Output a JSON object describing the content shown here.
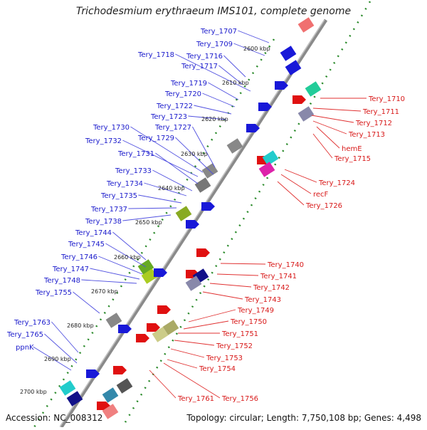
{
  "title": "Trichodesmium erythraeum IMS101, complete genome",
  "footer": {
    "accession": "Accession: NC_008312",
    "topology": "Topology: circular; Length: 7,750,108 bp; Genes: 4,498"
  },
  "kbp_ticks": [
    "2600 kbp",
    "2610 kbp",
    "2620 kbp",
    "2630 kbp",
    "2640 kbp",
    "2650 kbp",
    "2660 kbp",
    "2670 kbp",
    "2680 kbp",
    "2690 kbp",
    "2700 kbp"
  ],
  "left_genes": [
    "Tery_1707",
    "Tery_1709",
    "Tery_1718",
    "Tery_1716",
    "Tery_1717",
    "Tery_1719",
    "Tery_1720",
    "Tery_1722",
    "Tery_1723",
    "Tery_1730",
    "Tery_1727",
    "Tery_1729",
    "Tery_1732",
    "Tery_1731",
    "Tery_1733",
    "Tery_1734",
    "Tery_1735",
    "Tery_1737",
    "Tery_1738",
    "Tery_1744",
    "Tery_1745",
    "Tery_1746",
    "Tery_1747",
    "Tery_1748",
    "Tery_1755",
    "Tery_1763",
    "Tery_1765",
    "ppnK"
  ],
  "right_genes": [
    "Tery_1710",
    "Tery_1711",
    "Tery_1712",
    "Tery_1713",
    "hemE",
    "Tery_1715",
    "Tery_1724",
    "recF",
    "Tery_1726",
    "Tery_1740",
    "Tery_1741",
    "Tery_1742",
    "Tery_1743",
    "Tery_1749",
    "Tery_1750",
    "Tery_1751",
    "Tery_1752",
    "Tery_1753",
    "Tery_1754",
    "Tery_1761",
    "Tery_1756"
  ],
  "colors": {
    "left_label": "#1a1acc",
    "right_label": "#d81818",
    "backbone": "#8a8a8a",
    "tick": "#2a8a2a",
    "forward_gene": "#1818d8",
    "reverse_gene": "#e01010"
  }
}
